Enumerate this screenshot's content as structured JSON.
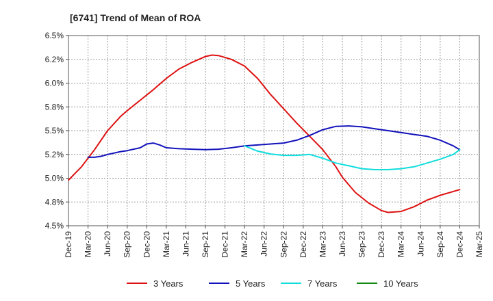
{
  "chart_data": {
    "type": "line",
    "title": "[6741]  Trend of Mean of ROA",
    "xlabel": "",
    "ylabel": "",
    "x_ticks": [
      "Dec-19",
      "Mar-20",
      "Jun-20",
      "Sep-20",
      "Dec-20",
      "Mar-21",
      "Jun-21",
      "Sep-21",
      "Dec-21",
      "Mar-22",
      "Jun-22",
      "Sep-22",
      "Dec-22",
      "Mar-23",
      "Jun-23",
      "Sep-23",
      "Dec-23",
      "Mar-24",
      "Jun-24",
      "Sep-24",
      "Dec-24",
      "Mar-25"
    ],
    "y_ticks": [
      "4.5%",
      "4.8%",
      "5.0%",
      "5.2%",
      "5.5%",
      "5.8%",
      "6.0%",
      "6.2%",
      "6.5%"
    ],
    "ylim": [
      4.5,
      6.5
    ],
    "grid": true,
    "legend_position": "bottom",
    "series": [
      {
        "name": "3 Years",
        "color": "#dd1111",
        "x": [
          "Dec-19",
          "Feb-20",
          "Apr-20",
          "Jun-20",
          "Aug-20",
          "Sep-20",
          "Nov-20",
          "Jan-21",
          "Mar-21",
          "May-21",
          "Jul-21",
          "Sep-21",
          "Oct-21",
          "Nov-21",
          "Jan-22",
          "Mar-22",
          "May-22",
          "Jul-22",
          "Sep-22",
          "Nov-22",
          "Jan-23",
          "Mar-23",
          "May-23",
          "Jun-23",
          "Aug-23",
          "Oct-23",
          "Dec-23",
          "Jan-24",
          "Mar-24",
          "May-24",
          "Jul-24",
          "Sep-24",
          "Dec-24"
        ],
        "values": [
          4.98,
          5.12,
          5.3,
          5.5,
          5.65,
          5.71,
          5.82,
          5.93,
          6.05,
          6.15,
          6.22,
          6.28,
          6.295,
          6.29,
          6.25,
          6.18,
          6.05,
          5.88,
          5.73,
          5.58,
          5.44,
          5.3,
          5.12,
          5.01,
          4.85,
          4.74,
          4.66,
          4.64,
          4.65,
          4.7,
          4.77,
          4.82,
          4.88
        ]
      },
      {
        "name": "5 Years",
        "color": "#1111bb",
        "x": [
          "Mar-20",
          "Apr-20",
          "May-20",
          "Jun-20",
          "Aug-20",
          "Sep-20",
          "Nov-20",
          "Dec-20",
          "Jan-21",
          "Feb-21",
          "Mar-21",
          "May-21",
          "Jul-21",
          "Sep-21",
          "Nov-21",
          "Jan-22",
          "Mar-22",
          "May-22",
          "Jul-22",
          "Sep-22",
          "Nov-22",
          "Jan-23",
          "Mar-23",
          "May-23",
          "Jul-23",
          "Sep-23",
          "Nov-23",
          "Jan-24",
          "Mar-24",
          "May-24",
          "Jul-24",
          "Sep-24",
          "Nov-24",
          "Dec-24"
        ],
        "values": [
          5.22,
          5.22,
          5.23,
          5.25,
          5.28,
          5.29,
          5.32,
          5.36,
          5.37,
          5.35,
          5.32,
          5.31,
          5.305,
          5.3,
          5.305,
          5.32,
          5.34,
          5.35,
          5.36,
          5.37,
          5.4,
          5.45,
          5.51,
          5.545,
          5.55,
          5.54,
          5.52,
          5.5,
          5.48,
          5.46,
          5.44,
          5.4,
          5.34,
          5.3
        ]
      },
      {
        "name": "7 Years",
        "color": "#11dddd",
        "x": [
          "Mar-22",
          "May-22",
          "Jul-22",
          "Sep-22",
          "Nov-22",
          "Jan-23",
          "Mar-23",
          "May-23",
          "Jul-23",
          "Sep-23",
          "Nov-23",
          "Jan-24",
          "Mar-24",
          "May-24",
          "Jul-24",
          "Sep-24",
          "Nov-24",
          "Dec-24"
        ],
        "values": [
          5.34,
          5.285,
          5.255,
          5.24,
          5.24,
          5.25,
          5.21,
          5.16,
          5.13,
          5.1,
          5.09,
          5.09,
          5.1,
          5.12,
          5.16,
          5.2,
          5.25,
          5.3
        ]
      },
      {
        "name": "10 Years",
        "color": "#118811",
        "x": [],
        "values": []
      }
    ]
  }
}
